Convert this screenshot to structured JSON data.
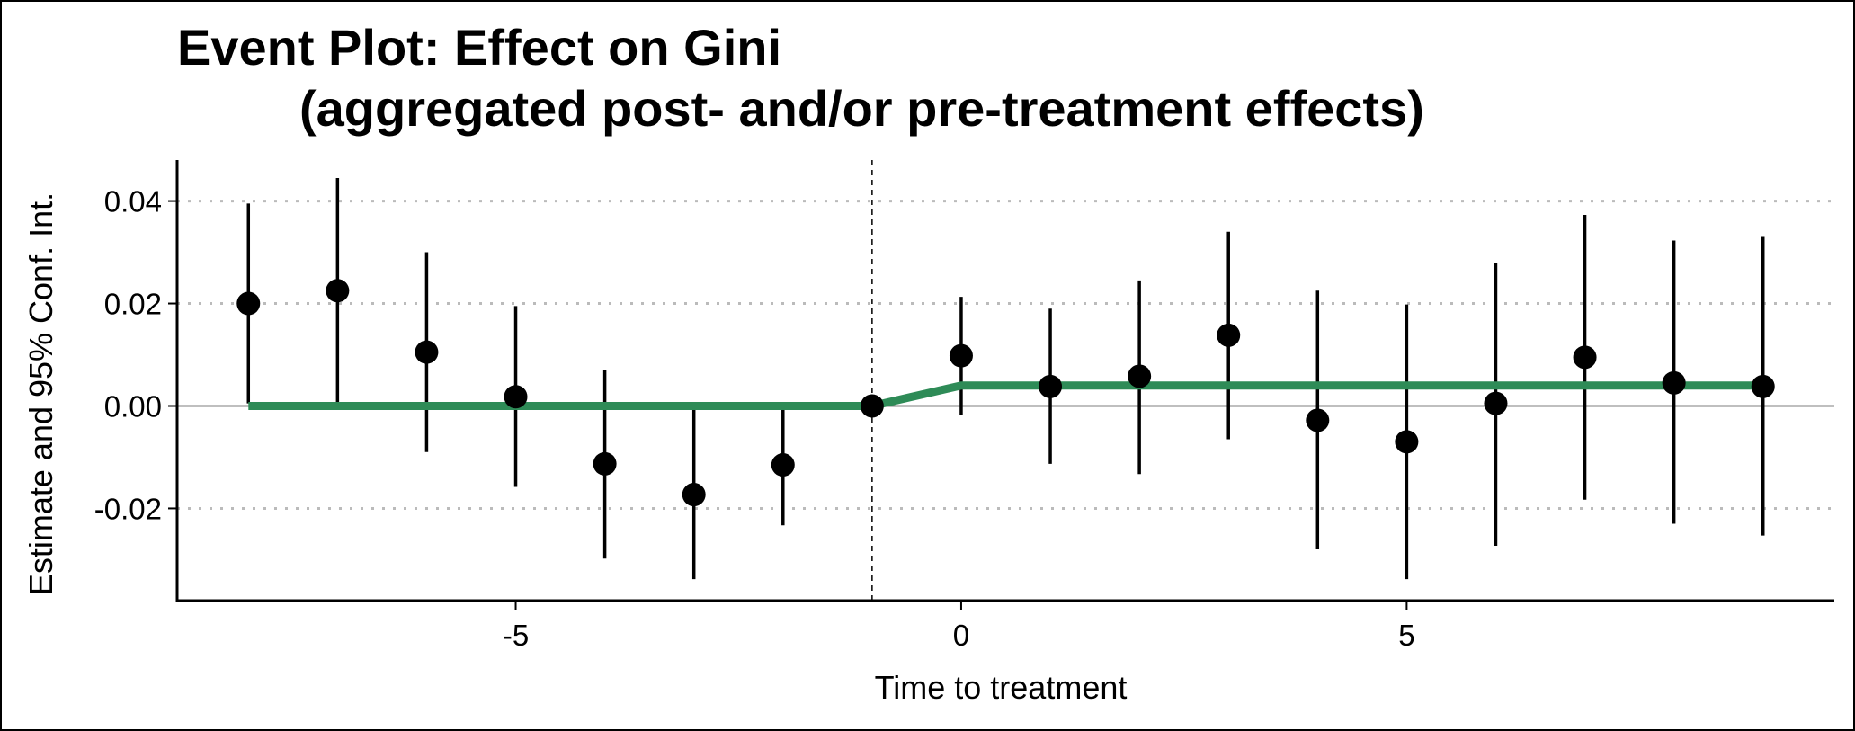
{
  "chart_data": {
    "type": "scatter",
    "title_line1": "Event Plot: Effect on Gini",
    "title_line2": "(aggregated post- and/or pre-treatment effects)",
    "xlabel": "Time to treatment",
    "ylabel": "Estimate and 95% Conf. Int.",
    "xlim": [
      -8.8,
      9.8
    ],
    "ylim": [
      -0.038,
      0.048
    ],
    "x_ticks": [
      -5,
      0,
      5
    ],
    "x_tick_labels": [
      "-5",
      "0",
      "5"
    ],
    "y_ticks": [
      0.04,
      0.02,
      0.0,
      -0.02
    ],
    "y_tick_labels": [
      "0.04",
      "0.02",
      "0.00",
      "-0.02"
    ],
    "grid": "horizontal dotted",
    "reference_hline": 0,
    "reference_vline": -1,
    "points": [
      {
        "x": -8,
        "estimate": 0.02,
        "lower": 0.0005,
        "upper": 0.0395
      },
      {
        "x": -7,
        "estimate": 0.0225,
        "lower": 0.0005,
        "upper": 0.0445
      },
      {
        "x": -6,
        "estimate": 0.0105,
        "lower": -0.009,
        "upper": 0.03
      },
      {
        "x": -5,
        "estimate": 0.0018,
        "lower": -0.0158,
        "upper": 0.0195
      },
      {
        "x": -4,
        "estimate": -0.0113,
        "lower": -0.0298,
        "upper": 0.007
      },
      {
        "x": -3,
        "estimate": -0.0173,
        "lower": -0.0338,
        "upper": -0.0005
      },
      {
        "x": -2,
        "estimate": -0.0115,
        "lower": -0.0233,
        "upper": 0.0003
      },
      {
        "x": -1,
        "estimate": 0.0,
        "lower": 0.0,
        "upper": 0.0
      },
      {
        "x": 0,
        "estimate": 0.0098,
        "lower": -0.0018,
        "upper": 0.0213
      },
      {
        "x": 1,
        "estimate": 0.0038,
        "lower": -0.0113,
        "upper": 0.019
      },
      {
        "x": 2,
        "estimate": 0.0058,
        "lower": -0.0133,
        "upper": 0.0245
      },
      {
        "x": 3,
        "estimate": 0.0138,
        "lower": -0.0065,
        "upper": 0.034
      },
      {
        "x": 4,
        "estimate": -0.0028,
        "lower": -0.028,
        "upper": 0.0225
      },
      {
        "x": 5,
        "estimate": -0.007,
        "lower": -0.0338,
        "upper": 0.0198
      },
      {
        "x": 6,
        "estimate": 0.0005,
        "lower": -0.0273,
        "upper": 0.028
      },
      {
        "x": 7,
        "estimate": 0.0095,
        "lower": -0.0183,
        "upper": 0.0373
      },
      {
        "x": 8,
        "estimate": 0.0045,
        "lower": -0.023,
        "upper": 0.0323
      },
      {
        "x": 9,
        "estimate": 0.0038,
        "lower": -0.0253,
        "upper": 0.033
      }
    ],
    "aggregate_line": [
      {
        "x": -8,
        "y": 0.0
      },
      {
        "x": -1,
        "y": 0.0
      },
      {
        "x": 0,
        "y": 0.004
      },
      {
        "x": 9,
        "y": 0.004
      }
    ],
    "colors": {
      "aggregate_line": "#2e8b57",
      "points": "#000000",
      "grid": "#bbbbbb"
    }
  }
}
